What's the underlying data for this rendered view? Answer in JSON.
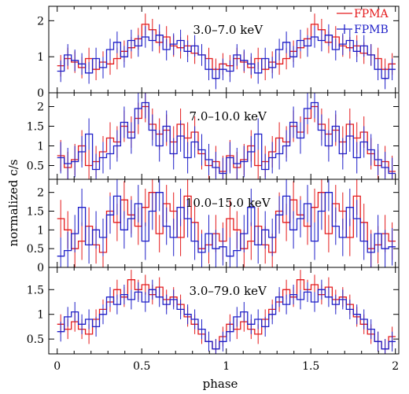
{
  "figure": {
    "xlabel": "phase",
    "ylabel": "normalized c/s",
    "x_ticks": [
      "0",
      "0.5",
      "1",
      "1.5",
      "2"
    ],
    "legend": [
      {
        "name": "FPMA",
        "color": "#e41a1c"
      },
      {
        "name": "FPMB",
        "color": "#1f1fc8"
      }
    ]
  },
  "chart_data": [
    {
      "type": "step",
      "panel_label": "3.0–7.0 keV",
      "xlim": [
        -0.05,
        2.02
      ],
      "ylim": [
        0,
        2.4
      ],
      "y_ticks": [
        0,
        1,
        2
      ],
      "y_tick_labels": [
        "0",
        "1",
        "2"
      ],
      "x_bins": 48,
      "bin_width": 0.0417,
      "series": [
        {
          "name": "FPMA",
          "color": "#e41a1c",
          "values": [
            0.75,
            0.95,
            0.85,
            0.7,
            0.95,
            0.65,
            0.85,
            0.8,
            0.95,
            1.15,
            1.25,
            1.5,
            1.9,
            1.75,
            1.4,
            1.55,
            1.3,
            1.25,
            1.3,
            1.1,
            1.05,
            0.95,
            0.65,
            0.8,
            0.75,
            0.95,
            0.85,
            0.7,
            0.95,
            0.65,
            0.85,
            0.8,
            0.95,
            1.15,
            1.25,
            1.5,
            1.9,
            1.75,
            1.4,
            1.55,
            1.3,
            1.25,
            1.3,
            1.1,
            1.05,
            0.95,
            0.65,
            0.8
          ],
          "errors": 0.3
        },
        {
          "name": "FPMB",
          "color": "#1f1fc8",
          "values": [
            0.6,
            1.05,
            0.9,
            0.8,
            0.55,
            0.95,
            0.7,
            1.2,
            1.4,
            1.0,
            1.45,
            1.3,
            1.55,
            1.45,
            1.6,
            1.2,
            1.35,
            1.45,
            1.15,
            1.3,
            1.05,
            0.65,
            0.4,
            0.65,
            0.6,
            1.05,
            0.9,
            0.8,
            0.55,
            0.95,
            0.7,
            1.2,
            1.4,
            1.0,
            1.45,
            1.3,
            1.55,
            1.45,
            1.6,
            1.2,
            1.35,
            1.45,
            1.15,
            1.3,
            1.05,
            0.65,
            0.4,
            0.65
          ],
          "errors": 0.3
        }
      ]
    },
    {
      "type": "step",
      "panel_label": "7.0–10.0 keV",
      "xlim": [
        -0.05,
        2.02
      ],
      "ylim": [
        0.15,
        2.35
      ],
      "y_ticks": [
        0.5,
        1,
        1.5,
        2
      ],
      "y_tick_labels": [
        "0.5",
        "1",
        "1.5",
        "2"
      ],
      "x_bins": 48,
      "bin_width": 0.0417,
      "series": [
        {
          "name": "FPMA",
          "color": "#e41a1c",
          "values": [
            0.75,
            0.45,
            0.65,
            1.0,
            0.5,
            0.6,
            0.85,
            1.2,
            1.1,
            1.5,
            1.35,
            1.7,
            2.0,
            1.55,
            1.3,
            1.4,
            1.1,
            1.55,
            1.2,
            1.35,
            0.8,
            0.5,
            0.6,
            0.35,
            0.75,
            0.45,
            0.65,
            1.0,
            0.5,
            0.6,
            0.85,
            1.2,
            1.1,
            1.5,
            1.35,
            1.7,
            2.0,
            1.55,
            1.3,
            1.4,
            1.1,
            1.55,
            1.2,
            1.35,
            0.8,
            0.5,
            0.6,
            0.35
          ],
          "errors": 0.4
        },
        {
          "name": "FPMB",
          "color": "#1f1fc8",
          "values": [
            0.7,
            0.55,
            0.6,
            0.85,
            1.3,
            0.4,
            0.7,
            0.8,
            1.0,
            1.6,
            1.2,
            1.95,
            2.1,
            1.4,
            1.0,
            1.5,
            0.8,
            1.25,
            0.7,
            1.1,
            0.9,
            0.65,
            0.45,
            0.3,
            0.7,
            0.55,
            0.6,
            0.85,
            1.3,
            0.4,
            0.7,
            0.8,
            1.0,
            1.6,
            1.2,
            1.95,
            2.1,
            1.4,
            1.0,
            1.5,
            0.8,
            1.25,
            0.7,
            1.1,
            0.9,
            0.65,
            0.45,
            0.3
          ],
          "errors": 0.4
        }
      ]
    },
    {
      "type": "step",
      "panel_label": "10.0–15.0 keV",
      "xlim": [
        -0.05,
        2.02
      ],
      "ylim": [
        0,
        2.35
      ],
      "y_ticks": [
        0,
        0.5,
        1,
        1.5,
        2
      ],
      "y_tick_labels": [
        "0",
        "0.5",
        "1",
        "1.5",
        "2"
      ],
      "x_bins": 48,
      "bin_width": 0.0417,
      "series": [
        {
          "name": "FPMA",
          "color": "#e41a1c",
          "values": [
            1.3,
            1.0,
            0.5,
            0.7,
            1.1,
            0.6,
            0.4,
            1.5,
            1.2,
            1.8,
            1.4,
            1.1,
            1.6,
            2.0,
            0.9,
            1.7,
            1.5,
            0.8,
            1.9,
            1.2,
            0.5,
            0.6,
            0.9,
            0.7,
            1.3,
            1.0,
            0.5,
            0.7,
            1.1,
            0.6,
            0.4,
            1.5,
            1.2,
            1.8,
            1.4,
            1.1,
            1.6,
            2.0,
            0.9,
            1.7,
            1.5,
            0.8,
            1.9,
            1.2,
            0.5,
            0.6,
            0.9,
            0.7
          ],
          "errors": 0.5
        },
        {
          "name": "FPMB",
          "color": "#1f1fc8",
          "values": [
            0.3,
            0.45,
            0.9,
            1.6,
            0.6,
            1.0,
            0.8,
            1.4,
            1.9,
            1.0,
            1.3,
            1.7,
            0.7,
            1.5,
            2.0,
            1.1,
            0.8,
            1.6,
            1.3,
            0.7,
            0.4,
            0.9,
            0.5,
            0.55,
            0.3,
            0.45,
            0.9,
            1.6,
            0.6,
            1.0,
            0.8,
            1.4,
            1.9,
            1.0,
            1.3,
            1.7,
            0.7,
            1.5,
            2.0,
            1.1,
            0.8,
            1.6,
            1.3,
            0.7,
            0.4,
            0.9,
            0.5,
            0.55
          ],
          "errors": 0.5
        }
      ]
    },
    {
      "type": "step",
      "panel_label": "3.0–79.0 keV",
      "xlim": [
        -0.05,
        2.02
      ],
      "ylim": [
        0.2,
        1.95
      ],
      "y_ticks": [
        0.5,
        1,
        1.5
      ],
      "y_tick_labels": [
        "0.5",
        "1",
        "1.5"
      ],
      "x_bins": 48,
      "bin_width": 0.0417,
      "series": [
        {
          "name": "FPMA",
          "color": "#e41a1c",
          "values": [
            0.8,
            0.7,
            0.85,
            0.7,
            0.6,
            0.9,
            1.1,
            1.25,
            1.5,
            1.35,
            1.7,
            1.5,
            1.6,
            1.4,
            1.55,
            1.3,
            1.35,
            1.2,
            0.95,
            0.8,
            0.6,
            0.45,
            0.3,
            0.55,
            0.8,
            0.7,
            0.85,
            0.7,
            0.6,
            0.9,
            1.1,
            1.25,
            1.5,
            1.35,
            1.7,
            1.5,
            1.6,
            1.4,
            1.55,
            1.3,
            1.35,
            1.2,
            0.95,
            0.8,
            0.6,
            0.45,
            0.3,
            0.55
          ],
          "errors": 0.2
        },
        {
          "name": "FPMB",
          "color": "#1f1fc8",
          "values": [
            0.65,
            0.95,
            1.05,
            0.8,
            0.9,
            0.75,
            1.0,
            1.35,
            1.2,
            1.4,
            1.3,
            1.45,
            1.25,
            1.5,
            1.35,
            1.2,
            1.3,
            1.1,
            1.0,
            0.9,
            0.7,
            0.45,
            0.3,
            0.45,
            0.65,
            0.95,
            1.05,
            0.8,
            0.9,
            0.75,
            1.0,
            1.35,
            1.2,
            1.4,
            1.3,
            1.45,
            1.25,
            1.5,
            1.35,
            1.2,
            1.3,
            1.1,
            1.0,
            0.9,
            0.7,
            0.45,
            0.3,
            0.45
          ],
          "errors": 0.2
        }
      ]
    }
  ]
}
